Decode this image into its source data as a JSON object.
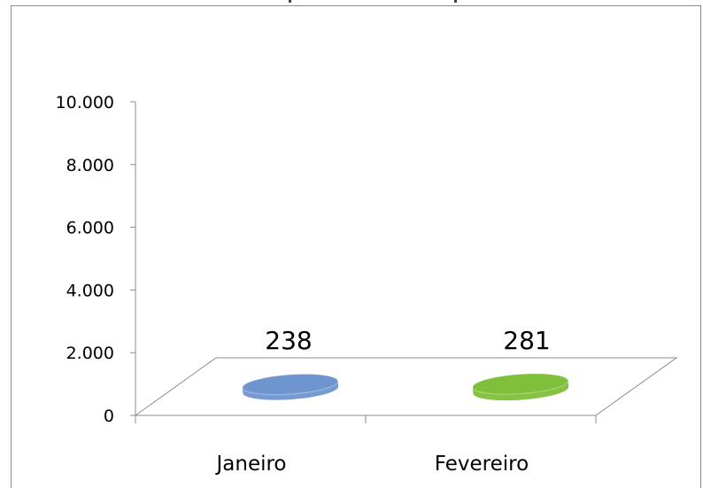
{
  "chart_data": {
    "type": "bar",
    "style": "3d-flat-ellipse",
    "categories": [
      "Janeiro",
      "Fevereiro"
    ],
    "values": [
      238,
      281
    ],
    "data_labels": [
      "238",
      "281"
    ],
    "colors": [
      "#6f95cf",
      "#7fbf3a"
    ],
    "ylim": [
      0,
      10000
    ],
    "yticks": [
      0,
      2000,
      4000,
      6000,
      8000,
      10000
    ],
    "ytick_labels": [
      "0",
      "2.000",
      "4.000",
      "6.000",
      "8.000",
      "10.000"
    ],
    "grid": false,
    "legend": "none"
  }
}
